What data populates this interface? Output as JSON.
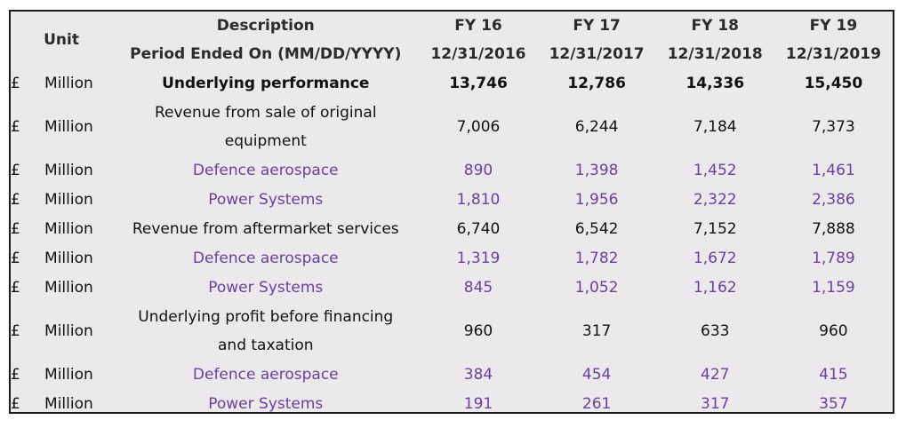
{
  "header": {
    "unit_label": "Unit",
    "description_label": "Description",
    "period_label": "Period Ended On (MM/DD/YYYY)",
    "years": [
      {
        "fy": "FY 16",
        "date": "12/31/2016"
      },
      {
        "fy": "FY 17",
        "date": "12/31/2017"
      },
      {
        "fy": "FY 18",
        "date": "12/31/2018"
      },
      {
        "fy": "FY 19",
        "date": "12/31/2019"
      }
    ]
  },
  "rows": [
    {
      "currency": "£",
      "unit": "Million",
      "description": "Underlying performance",
      "values": [
        "13,746",
        "12,786",
        "14,336",
        "15,450"
      ]
    },
    {
      "currency": "£",
      "unit": "Million",
      "description": "Revenue from sale of original equipment",
      "values": [
        "7,006",
        "6,244",
        "7,184",
        "7,373"
      ]
    },
    {
      "currency": "£",
      "unit": "Million",
      "description": "Defence aerospace",
      "values": [
        "890",
        "1,398",
        "1,452",
        "1,461"
      ]
    },
    {
      "currency": "£",
      "unit": "Million",
      "description": "Power Systems",
      "values": [
        "1,810",
        "1,956",
        "2,322",
        "2,386"
      ]
    },
    {
      "currency": "£",
      "unit": "Million",
      "description": "Revenue from aftermarket services",
      "values": [
        "6,740",
        "6,542",
        "7,152",
        "7,888"
      ]
    },
    {
      "currency": "£",
      "unit": "Million",
      "description": "Defence aerospace",
      "values": [
        "1,319",
        "1,782",
        "1,672",
        "1,789"
      ]
    },
    {
      "currency": "£",
      "unit": "Million",
      "description": "Power Systems",
      "values": [
        "845",
        "1,052",
        "1,162",
        "1,159"
      ]
    },
    {
      "currency": "£",
      "unit": "Million",
      "description": "Underlying profit before financing and taxation",
      "values": [
        "960",
        "317",
        "633",
        "960"
      ]
    },
    {
      "currency": "£",
      "unit": "Million",
      "description": "Defence aerospace",
      "values": [
        "384",
        "454",
        "427",
        "415"
      ]
    },
    {
      "currency": "£",
      "unit": "Million",
      "description": "Power Systems",
      "values": [
        "191",
        "261",
        "317",
        "357"
      ]
    }
  ],
  "colors": {
    "background": "#ece9ec",
    "border": "#1c1c1c",
    "sub_item_text": "#6a3fa0"
  }
}
